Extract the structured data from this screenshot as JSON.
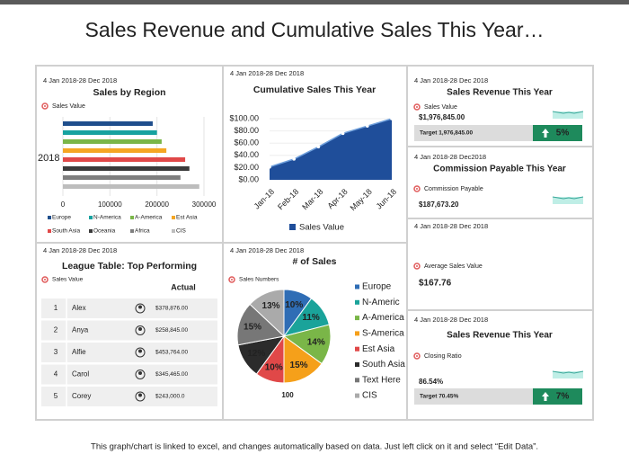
{
  "title": "Sales Revenue and Cumulative Sales This Year…",
  "footer": "This graph/chart is linked to excel, and changes automatically based on data. Just left click on it and select “Edit Data”.",
  "chart_data": [
    {
      "type": "hbar",
      "subtitle": "4 Jan 2018-28 Dec 2018",
      "title": "Sales by Region",
      "series_label": "Sales Value",
      "categories": [
        "2018"
      ],
      "series": [
        {
          "name": "Europe",
          "color": "#1f4e8c",
          "values": [
            191000
          ]
        },
        {
          "name": "N-America",
          "color": "#17a2a0",
          "values": [
            200000
          ]
        },
        {
          "name": "A-America",
          "color": "#7ab648",
          "values": [
            210000
          ]
        },
        {
          "name": "Est Asia",
          "color": "#f5a623",
          "values": [
            220000
          ]
        },
        {
          "name": "South Asia",
          "color": "#e04848",
          "values": [
            260000
          ]
        },
        {
          "name": "Oceania",
          "color": "#3a3a3a",
          "values": [
            269000
          ]
        },
        {
          "name": "Africa",
          "color": "#7f7f7f",
          "values": [
            250000
          ]
        },
        {
          "name": "CIS",
          "color": "#bdbdbd",
          "values": [
            290000
          ]
        }
      ],
      "xlim": [
        0,
        300000
      ],
      "xticks": [
        0,
        100000,
        200000,
        300000
      ],
      "grid": true
    },
    {
      "type": "area",
      "subtitle": "4 Jan 2018-28 Dec 2018",
      "title": "Cumulative Sales This Year",
      "categories": [
        "Jan-18",
        "Feb-18",
        "Mar-18",
        "Apr-18",
        "May-18",
        "Jun-18"
      ],
      "series": [
        {
          "name": "Sales Value",
          "color": "#1f4e9a",
          "values": [
            21,
            34,
            54,
            76,
            88,
            100
          ]
        }
      ],
      "ylim": [
        0,
        100
      ],
      "yticks": [
        {
          "value": 0,
          "label": "$0.00"
        },
        {
          "value": 20,
          "label": "$20.00"
        },
        {
          "value": 40,
          "label": "$40.00"
        },
        {
          "value": 60,
          "label": "$60.00"
        },
        {
          "value": 80,
          "label": "$80.00"
        },
        {
          "value": 100,
          "label": "$100.00"
        }
      ]
    },
    {
      "type": "pie",
      "subtitle": "4 Jan 2018-28 Dec 2018",
      "title": "# of Sales",
      "series_label": "Sales Numbers",
      "categories": [
        "Europe",
        "N-Americ",
        "A-America",
        "S-America",
        "Est Asia",
        "South Asia",
        "Text Here",
        "CIS"
      ],
      "values": [
        10,
        11,
        14,
        15,
        10,
        12,
        15,
        13
      ],
      "value_labels": [
        "10%",
        "11%",
        "14%",
        "15%",
        "10%",
        "12%",
        "15%",
        "13%"
      ],
      "colors": [
        "#2f6db5",
        "#1aa39a",
        "#7ab648",
        "#f5a01a",
        "#e04848",
        "#2b2b2b",
        "#777777",
        "#aaaaaa"
      ],
      "total": "100"
    }
  ],
  "league_table": {
    "subtitle": "4 Jan 2018-28 Dec 2018",
    "title": "League Table: Top Performing",
    "series_label": "Sales Value",
    "header": "Actual",
    "rows": [
      [
        "1",
        "Alex",
        "$378,876.00"
      ],
      [
        "2",
        "Anya",
        "$258,845.00"
      ],
      [
        "3",
        "Alfie",
        "$453,764.00"
      ],
      [
        "4",
        "Carol",
        "$345,465.00"
      ],
      [
        "5",
        "Corey",
        "$243,000.0"
      ]
    ]
  },
  "kpis": [
    {
      "date": "4 Jan 2018-28 Dec 2018",
      "title": "Sales Revenue This Year",
      "label": "Sales Value",
      "value": "$1,976,845.00",
      "target": "Target  1,976,845.00",
      "change": "5%"
    },
    {
      "date": "4 Jan 2018-28 Dec2018",
      "title": "Commission Payable This Year",
      "label": "Commission Payable",
      "value": "$187,673.20"
    },
    {
      "date": "4 Jan 2018-28 Dec 2018",
      "label": "Average Sales Value",
      "value": "$167.76"
    },
    {
      "date": "4 Jan 2018-28 Dec 2018",
      "title": "Sales Revenue This Year",
      "label": "Closing Ratio",
      "value": "86.54%",
      "target": "Target 70.45%",
      "change": "7%"
    }
  ]
}
